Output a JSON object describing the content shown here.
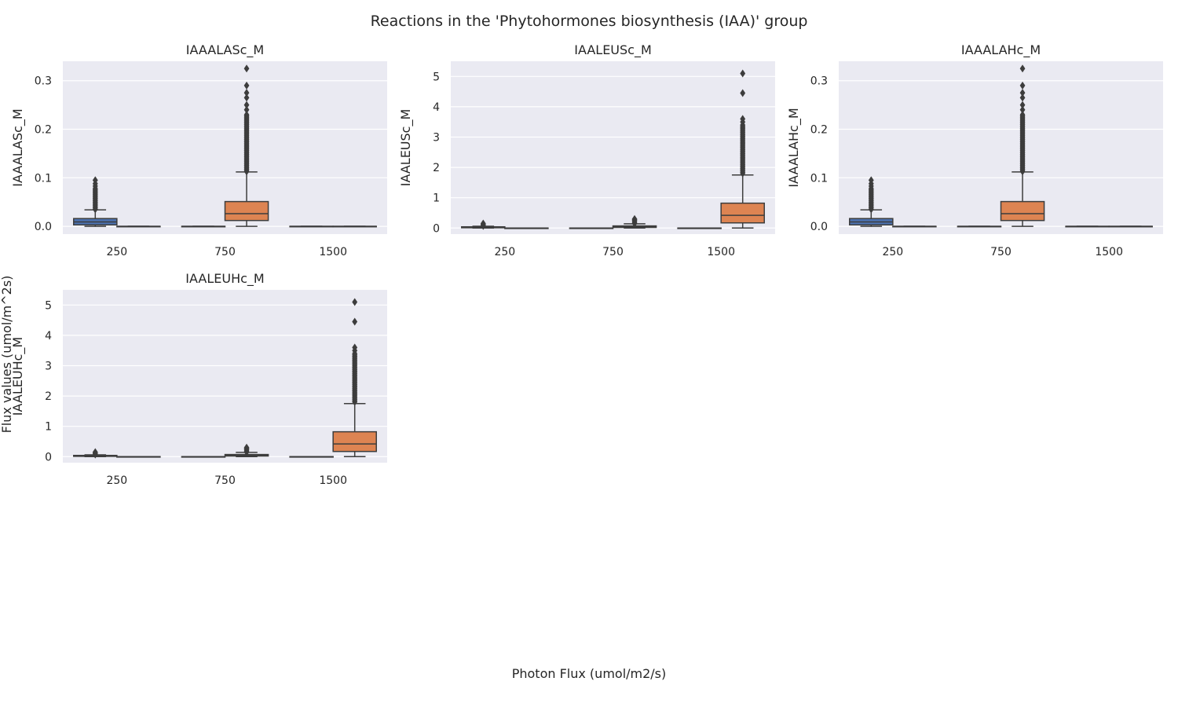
{
  "figure": {
    "title": "Reactions in the 'Phytohormones biosynthesis (IAA)' group",
    "xlabel": "Photon Flux (umol/m2/s)",
    "ylabel": "Flux values (umol/m^2s)"
  },
  "colors": {
    "panel_bg": "#eaeaf2",
    "grid": "#ffffff",
    "series_a": "#4c72b0",
    "series_b": "#dd8452",
    "box_edge": "#3d3d3d"
  },
  "chart_data": [
    {
      "type": "box",
      "title": "IAAALASc_M",
      "ylabel": "IAAALASc_M",
      "categories": [
        "250",
        "750",
        "1500"
      ],
      "ylim": [
        -0.016,
        0.34
      ],
      "yticks": [
        0.0,
        0.1,
        0.2,
        0.3
      ],
      "ytick_labels": [
        "0.0",
        "0.1",
        "0.2",
        "0.3"
      ],
      "grid": true,
      "groups": [
        [
          {
            "min": 0.0,
            "q1": 0.003,
            "median": 0.009,
            "q3": 0.016,
            "max": 0.034,
            "outliers_range": [
              0.035,
              0.078
            ],
            "outliers": [
              0.083,
              0.088,
              0.095
            ]
          },
          {
            "min": 0.0,
            "q1": 0.0,
            "median": 0.0,
            "q3": 0.0,
            "max": 0.0,
            "outliers_range": null,
            "outliers": []
          }
        ],
        [
          {
            "min": 0.0,
            "q1": 0.0,
            "median": 0.0,
            "q3": 0.0,
            "max": 0.0,
            "outliers_range": null,
            "outliers": []
          },
          {
            "min": 0.0,
            "q1": 0.012,
            "median": 0.026,
            "q3": 0.051,
            "max": 0.112,
            "outliers_range": [
              0.113,
              0.23
            ],
            "outliers": [
              0.24,
              0.25,
              0.265,
              0.275,
              0.29,
              0.325
            ]
          }
        ],
        [
          {
            "min": 0.0,
            "q1": 0.0,
            "median": 0.0,
            "q3": 0.0,
            "max": 0.0,
            "outliers_range": null,
            "outliers": []
          },
          {
            "min": 0.0,
            "q1": 0.0,
            "median": 0.0,
            "q3": 0.0,
            "max": 0.0,
            "outliers_range": null,
            "outliers": []
          }
        ]
      ]
    },
    {
      "type": "box",
      "title": "IAALEUSc_M",
      "ylabel": "IAALEUSc_M",
      "categories": [
        "250",
        "750",
        "1500"
      ],
      "ylim": [
        -0.2,
        5.5
      ],
      "yticks": [
        0,
        1,
        2,
        3,
        4,
        5
      ],
      "ytick_labels": [
        "0",
        "1",
        "2",
        "3",
        "4",
        "5"
      ],
      "grid": true,
      "groups": [
        [
          {
            "min": 0.0,
            "q1": 0.01,
            "median": 0.02,
            "q3": 0.04,
            "max": 0.06,
            "outliers_range": [
              0.07,
              0.13
            ],
            "outliers": [
              0.15
            ]
          },
          {
            "min": 0.0,
            "q1": 0.0,
            "median": 0.0,
            "q3": 0.0,
            "max": 0.0,
            "outliers_range": null,
            "outliers": []
          }
        ],
        [
          {
            "min": 0.0,
            "q1": 0.0,
            "median": 0.0,
            "q3": 0.0,
            "max": 0.0,
            "outliers_range": null,
            "outliers": []
          },
          {
            "min": 0.0,
            "q1": 0.02,
            "median": 0.04,
            "q3": 0.07,
            "max": 0.14,
            "outliers_range": [
              0.15,
              0.25
            ],
            "outliers": [
              0.28,
              0.3
            ]
          }
        ],
        [
          {
            "min": 0.0,
            "q1": 0.0,
            "median": 0.0,
            "q3": 0.0,
            "max": 0.0,
            "outliers_range": null,
            "outliers": []
          },
          {
            "min": 0.0,
            "q1": 0.17,
            "median": 0.42,
            "q3": 0.82,
            "max": 1.75,
            "outliers_range": [
              1.8,
              3.4
            ],
            "outliers": [
              3.5,
              3.6,
              4.45,
              5.1
            ]
          }
        ]
      ]
    },
    {
      "type": "box",
      "title": "IAAALAHc_M",
      "ylabel": "IAAALAHc_M",
      "categories": [
        "250",
        "750",
        "1500"
      ],
      "ylim": [
        -0.016,
        0.34
      ],
      "yticks": [
        0.0,
        0.1,
        0.2,
        0.3
      ],
      "ytick_labels": [
        "0.0",
        "0.1",
        "0.2",
        "0.3"
      ],
      "grid": true,
      "groups": [
        [
          {
            "min": 0.0,
            "q1": 0.003,
            "median": 0.009,
            "q3": 0.016,
            "max": 0.034,
            "outliers_range": [
              0.035,
              0.078
            ],
            "outliers": [
              0.083,
              0.088,
              0.095
            ]
          },
          {
            "min": 0.0,
            "q1": 0.0,
            "median": 0.0,
            "q3": 0.0,
            "max": 0.0,
            "outliers_range": null,
            "outliers": []
          }
        ],
        [
          {
            "min": 0.0,
            "q1": 0.0,
            "median": 0.0,
            "q3": 0.0,
            "max": 0.0,
            "outliers_range": null,
            "outliers": []
          },
          {
            "min": 0.0,
            "q1": 0.012,
            "median": 0.026,
            "q3": 0.051,
            "max": 0.112,
            "outliers_range": [
              0.113,
              0.23
            ],
            "outliers": [
              0.24,
              0.25,
              0.265,
              0.275,
              0.29,
              0.325
            ]
          }
        ],
        [
          {
            "min": 0.0,
            "q1": 0.0,
            "median": 0.0,
            "q3": 0.0,
            "max": 0.0,
            "outliers_range": null,
            "outliers": []
          },
          {
            "min": 0.0,
            "q1": 0.0,
            "median": 0.0,
            "q3": 0.0,
            "max": 0.0,
            "outliers_range": null,
            "outliers": []
          }
        ]
      ]
    },
    {
      "type": "box",
      "title": "IAALEUHc_M",
      "ylabel": "IAALEUHc_M",
      "categories": [
        "250",
        "750",
        "1500"
      ],
      "ylim": [
        -0.2,
        5.5
      ],
      "yticks": [
        0,
        1,
        2,
        3,
        4,
        5
      ],
      "ytick_labels": [
        "0",
        "1",
        "2",
        "3",
        "4",
        "5"
      ],
      "grid": true,
      "groups": [
        [
          {
            "min": 0.0,
            "q1": 0.01,
            "median": 0.02,
            "q3": 0.04,
            "max": 0.06,
            "outliers_range": [
              0.07,
              0.13
            ],
            "outliers": [
              0.15
            ]
          },
          {
            "min": 0.0,
            "q1": 0.0,
            "median": 0.0,
            "q3": 0.0,
            "max": 0.0,
            "outliers_range": null,
            "outliers": []
          }
        ],
        [
          {
            "min": 0.0,
            "q1": 0.0,
            "median": 0.0,
            "q3": 0.0,
            "max": 0.0,
            "outliers_range": null,
            "outliers": []
          },
          {
            "min": 0.0,
            "q1": 0.02,
            "median": 0.04,
            "q3": 0.07,
            "max": 0.14,
            "outliers_range": [
              0.15,
              0.25
            ],
            "outliers": [
              0.28,
              0.3
            ]
          }
        ],
        [
          {
            "min": 0.0,
            "q1": 0.0,
            "median": 0.0,
            "q3": 0.0,
            "max": 0.0,
            "outliers_range": null,
            "outliers": []
          },
          {
            "min": 0.0,
            "q1": 0.17,
            "median": 0.42,
            "q3": 0.82,
            "max": 1.75,
            "outliers_range": [
              1.8,
              3.4
            ],
            "outliers": [
              3.5,
              3.6,
              4.45,
              5.1
            ]
          }
        ]
      ]
    }
  ]
}
